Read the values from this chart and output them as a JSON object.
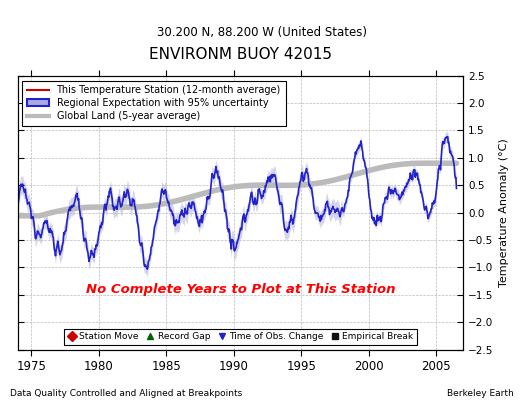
{
  "title": "ENVIRONM BUOY 42015",
  "subtitle": "30.200 N, 88.200 W (United States)",
  "xlabel_left": "Data Quality Controlled and Aligned at Breakpoints",
  "xlabel_right": "Berkeley Earth",
  "ylabel": "Temperature Anomaly (°C)",
  "xlim": [
    1974.0,
    2007.0
  ],
  "ylim": [
    -2.5,
    2.5
  ],
  "yticks": [
    -2.5,
    -2,
    -1.5,
    -1,
    -0.5,
    0,
    0.5,
    1,
    1.5,
    2,
    2.5
  ],
  "xticks": [
    1975,
    1980,
    1985,
    1990,
    1995,
    2000,
    2005
  ],
  "no_data_text": "No Complete Years to Plot at This Station",
  "no_data_color": "red",
  "bg_color": "#ffffff",
  "plot_bg": "#ffffff",
  "legend_entries": [
    {
      "label": "This Temperature Station (12-month average)",
      "color": "#cc0000",
      "lw": 1.5
    },
    {
      "label": "Regional Expectation with 95% uncertainty",
      "color": "#2222cc",
      "lw": 1.5
    },
    {
      "label": "Global Land (5-year average)",
      "color": "#aaaaaa",
      "lw": 3
    }
  ],
  "bottom_legend": [
    {
      "label": "Station Move",
      "color": "#cc0000",
      "marker": "D"
    },
    {
      "label": "Record Gap",
      "color": "#006600",
      "marker": "^"
    },
    {
      "label": "Time of Obs. Change",
      "color": "#2222cc",
      "marker": "v"
    },
    {
      "label": "Empirical Break",
      "color": "#111111",
      "marker": "s"
    }
  ],
  "uncertainty_color": "#aaaadd",
  "uncertainty_alpha": 0.5,
  "global_land_color": "#bbbbbb",
  "regional_color": "#2222cc",
  "station_color": "#cc0000"
}
